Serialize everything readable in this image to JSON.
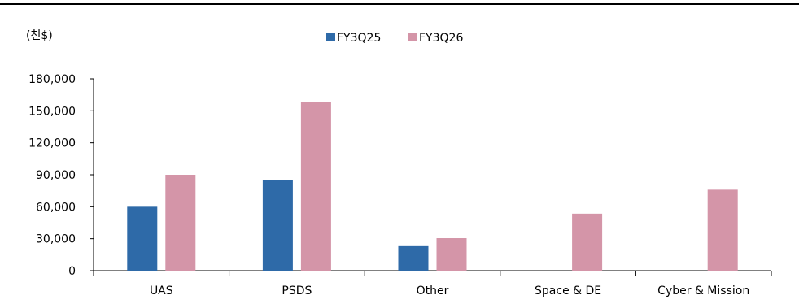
{
  "chart_data": {
    "type": "bar",
    "unit_label": "(천$)",
    "categories": [
      "UAS",
      "PSDS",
      "Other",
      "Space & DE",
      "Cyber & Mission"
    ],
    "series": [
      {
        "name": "FY3Q25",
        "color": "#2e6aa8",
        "values": [
          60000,
          85000,
          23000,
          null,
          null
        ]
      },
      {
        "name": "FY3Q26",
        "color": "#d495a8",
        "values": [
          90000,
          158000,
          30500,
          53500,
          76000
        ]
      }
    ],
    "ylim": [
      0,
      180000
    ],
    "yticks": [
      0,
      30000,
      60000,
      90000,
      120000,
      150000,
      180000
    ],
    "ytick_labels": [
      "0",
      "30,000",
      "60,000",
      "90,000",
      "120,000",
      "150,000",
      "180,000"
    ],
    "legend_position": "top-center",
    "grid": false
  }
}
